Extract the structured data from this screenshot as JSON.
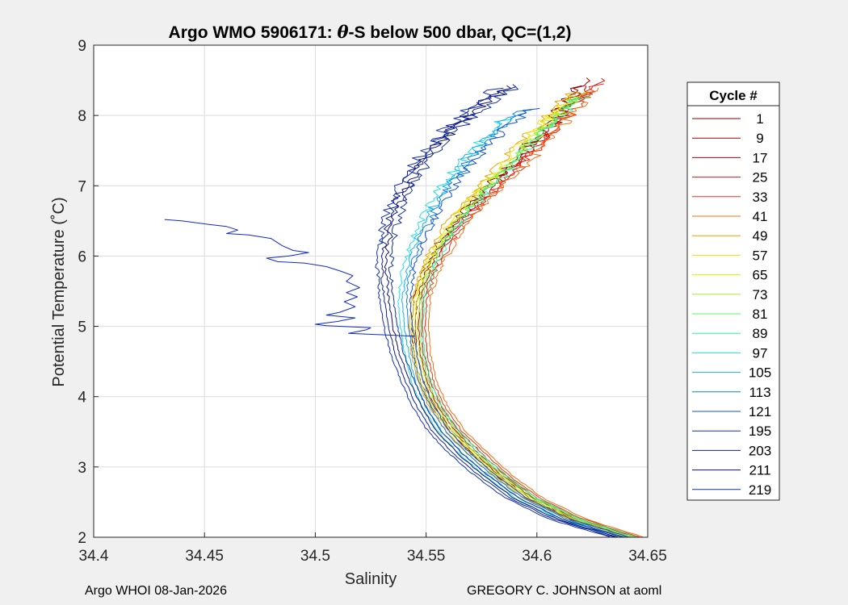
{
  "chart_data": {
    "type": "line",
    "title": "Argo WMO 5906171: θ-S below 500 dbar,  QC=(1,2)",
    "title_prefix": "Argo WMO 5906171: ",
    "title_theta": "θ",
    "title_suffix": "-S below 500 dbar,  QC=(1,2)",
    "xlabel": "Salinity",
    "ylabel": "Potential Temperature (˚C)",
    "xlim": [
      34.4,
      34.65
    ],
    "ylim": [
      2,
      9
    ],
    "xticks": [
      "34.4",
      "34.45",
      "34.5",
      "34.55",
      "34.6",
      "34.65"
    ],
    "yticks": [
      "2",
      "3",
      "4",
      "5",
      "6",
      "7",
      "8",
      "9"
    ],
    "grid": true,
    "legend": {
      "title": "Cycle #",
      "placement": "outside-right",
      "entries": [
        {
          "label": "1",
          "color": "#800000"
        },
        {
          "label": "9",
          "color": "#a00000"
        },
        {
          "label": "17",
          "color": "#c00000"
        },
        {
          "label": "25",
          "color": "#e01010"
        },
        {
          "label": "33",
          "color": "#f03010"
        },
        {
          "label": "41",
          "color": "#f07010"
        },
        {
          "label": "49",
          "color": "#f0a000"
        },
        {
          "label": "57",
          "color": "#f0e000"
        },
        {
          "label": "65",
          "color": "#d8f000"
        },
        {
          "label": "73",
          "color": "#a0f030"
        },
        {
          "label": "81",
          "color": "#60f060"
        },
        {
          "label": "89",
          "color": "#30f0a0"
        },
        {
          "label": "97",
          "color": "#20e0e0"
        },
        {
          "label": "105",
          "color": "#10b0f0"
        },
        {
          "label": "113",
          "color": "#1080e0"
        },
        {
          "label": "121",
          "color": "#1050d0"
        },
        {
          "label": "195",
          "color": "#1030b0"
        },
        {
          "label": "203",
          "color": "#102090"
        },
        {
          "label": "211",
          "color": "#101070"
        },
        {
          "label": "219",
          "color": "#1030a0"
        }
      ]
    },
    "series": [
      {
        "kind": "group-shift",
        "shift": 0.0015,
        "colors": [
          "#800000",
          "#a00000",
          "#c00000",
          "#e01010",
          "#f03010",
          "#f07010"
        ],
        "top_temp": 8.55,
        "points": [
          [
            34.645,
            2.0
          ],
          [
            34.62,
            2.25
          ],
          [
            34.6,
            2.55
          ],
          [
            34.585,
            2.9
          ],
          [
            34.575,
            3.2
          ],
          [
            34.565,
            3.5
          ],
          [
            34.557,
            3.85
          ],
          [
            34.552,
            4.2
          ],
          [
            34.549,
            4.6
          ],
          [
            34.548,
            5.0
          ],
          [
            34.549,
            5.4
          ],
          [
            34.553,
            5.8
          ],
          [
            34.56,
            6.2
          ],
          [
            34.57,
            6.6
          ],
          [
            34.582,
            7.0
          ],
          [
            34.595,
            7.4
          ],
          [
            34.607,
            7.8
          ],
          [
            34.618,
            8.2
          ],
          [
            34.628,
            8.55
          ]
        ]
      },
      {
        "kind": "group-shift",
        "shift": 0.0012,
        "colors": [
          "#f0a000",
          "#f0e000",
          "#d8f000",
          "#a0f030",
          "#60f060",
          "#30f0a0"
        ],
        "top_temp": 8.35,
        "points": [
          [
            34.643,
            2.0
          ],
          [
            34.618,
            2.25
          ],
          [
            34.598,
            2.55
          ],
          [
            34.583,
            2.9
          ],
          [
            34.572,
            3.2
          ],
          [
            34.563,
            3.5
          ],
          [
            34.555,
            3.85
          ],
          [
            34.55,
            4.2
          ],
          [
            34.547,
            4.6
          ],
          [
            34.546,
            5.0
          ],
          [
            34.547,
            5.4
          ],
          [
            34.551,
            5.8
          ],
          [
            34.557,
            6.2
          ],
          [
            34.566,
            6.6
          ],
          [
            34.578,
            7.0
          ],
          [
            34.59,
            7.4
          ],
          [
            34.602,
            7.8
          ],
          [
            34.612,
            8.1
          ],
          [
            34.62,
            8.35
          ]
        ]
      },
      {
        "kind": "group-shift",
        "shift": 0.0018,
        "colors": [
          "#20e0e0",
          "#10b0f0",
          "#1080e0",
          "#1050d0"
        ],
        "top_temp": 8.15,
        "points": [
          [
            34.64,
            2.0
          ],
          [
            34.614,
            2.25
          ],
          [
            34.594,
            2.55
          ],
          [
            34.579,
            2.9
          ],
          [
            34.568,
            3.2
          ],
          [
            34.559,
            3.5
          ],
          [
            34.552,
            3.85
          ],
          [
            34.547,
            4.2
          ],
          [
            34.544,
            4.6
          ],
          [
            34.542,
            5.0
          ],
          [
            34.541,
            5.4
          ],
          [
            34.543,
            5.8
          ],
          [
            34.547,
            6.2
          ],
          [
            34.553,
            6.6
          ],
          [
            34.561,
            7.0
          ],
          [
            34.571,
            7.4
          ],
          [
            34.583,
            7.8
          ],
          [
            34.598,
            8.15
          ]
        ]
      },
      {
        "kind": "group-shift",
        "shift": 0.002,
        "colors": [
          "#1030b0",
          "#102090",
          "#101070",
          "#1030a0"
        ],
        "top_temp": 8.45,
        "points": [
          [
            34.637,
            2.0
          ],
          [
            34.61,
            2.25
          ],
          [
            34.59,
            2.55
          ],
          [
            34.575,
            2.9
          ],
          [
            34.564,
            3.2
          ],
          [
            34.555,
            3.5
          ],
          [
            34.548,
            3.85
          ],
          [
            34.543,
            4.2
          ],
          [
            34.538,
            4.6
          ],
          [
            34.535,
            5.0
          ],
          [
            34.533,
            5.4
          ],
          [
            34.532,
            5.8
          ],
          [
            34.533,
            6.2
          ],
          [
            34.536,
            6.6
          ],
          [
            34.542,
            7.0
          ],
          [
            34.55,
            7.4
          ],
          [
            34.562,
            7.8
          ],
          [
            34.578,
            8.2
          ],
          [
            34.59,
            8.45
          ]
        ]
      },
      {
        "name": "",
        "color": "#1028c8",
        "kind": "anomaly",
        "points": [
          [
            34.432,
            6.52
          ],
          [
            34.44,
            6.5
          ],
          [
            34.452,
            6.45
          ],
          [
            34.46,
            6.42
          ],
          [
            34.465,
            6.37
          ],
          [
            34.46,
            6.32
          ],
          [
            34.47,
            6.3
          ],
          [
            34.48,
            6.25
          ],
          [
            34.485,
            6.15
          ],
          [
            34.49,
            6.08
          ],
          [
            34.497,
            6.05
          ],
          [
            34.488,
            6.0
          ],
          [
            34.478,
            5.97
          ],
          [
            34.483,
            5.92
          ],
          [
            34.495,
            5.9
          ],
          [
            34.505,
            5.85
          ],
          [
            34.512,
            5.78
          ],
          [
            34.517,
            5.72
          ],
          [
            34.514,
            5.64
          ],
          [
            34.52,
            5.55
          ],
          [
            34.514,
            5.48
          ],
          [
            34.519,
            5.42
          ],
          [
            34.513,
            5.35
          ],
          [
            34.518,
            5.28
          ],
          [
            34.511,
            5.2
          ],
          [
            34.505,
            5.16
          ],
          [
            34.518,
            5.12
          ],
          [
            34.51,
            5.07
          ],
          [
            34.5,
            5.03
          ],
          [
            34.505,
            5.01
          ],
          [
            34.525,
            4.98
          ],
          [
            34.523,
            4.95
          ],
          [
            34.515,
            4.9
          ],
          [
            34.53,
            4.88
          ],
          [
            34.545,
            4.86
          ]
        ]
      }
    ]
  },
  "footer": {
    "left": "Argo WHOI 08-Jan-2026",
    "right": "GREGORY C. JOHNSON at aoml"
  }
}
